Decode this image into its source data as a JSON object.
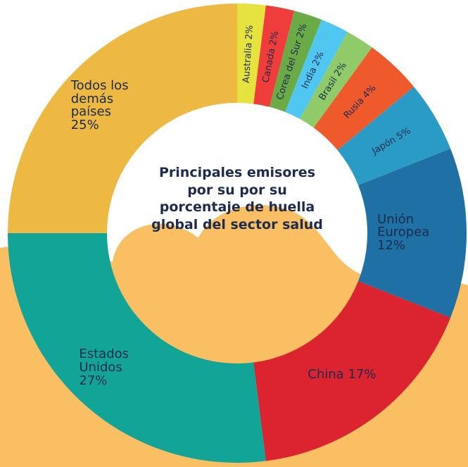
{
  "chart_data": {
    "type": "donut",
    "title": "Principales emisores por su por su porcentaje de huella global del sector salud",
    "categories": [
      "Australia",
      "Canada",
      "Corea del Sur",
      "India",
      "Brasil",
      "Rusia",
      "Japón",
      "Unión Europea",
      "China",
      "Estados Unidos",
      "Todos los demás países"
    ],
    "values": [
      2,
      2,
      2,
      2,
      2,
      4,
      5,
      12,
      17,
      27,
      25
    ],
    "value_labels": [
      "2%",
      "2%",
      "2%",
      "2%",
      "2%",
      "4%",
      "5%",
      "12%",
      "17%",
      "27%",
      "25%"
    ],
    "colors": [
      "#e6e23e",
      "#ee3d3a",
      "#6aab47",
      "#4fc7f0",
      "#8fcb68",
      "#ee5a2b",
      "#2a9bc4",
      "#1f70a4",
      "#db2430",
      "#12a496",
      "#edb942"
    ]
  }
}
